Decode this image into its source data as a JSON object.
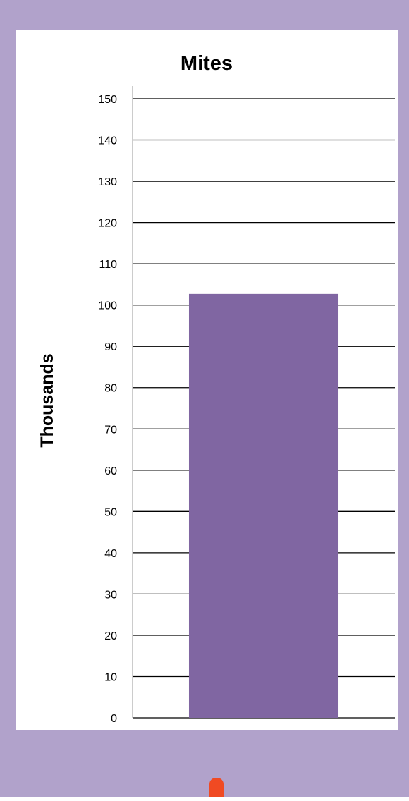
{
  "chart_data": {
    "type": "bar",
    "title": "Mites",
    "xlabel": "",
    "ylabel": "Thousands",
    "ylim": [
      0,
      150
    ],
    "y_ticks": [
      "0",
      "10",
      "20",
      "30",
      "40",
      "50",
      "60",
      "70",
      "80",
      "90",
      "100",
      "110",
      "120",
      "130",
      "140",
      "150"
    ],
    "categories": [
      ""
    ],
    "values": [
      102.7
    ],
    "grid": true,
    "legend": "none"
  },
  "colors": {
    "frame": "#b1a2cb",
    "bar": "#8066a2",
    "indicator": "#f04a23",
    "panel": "#ffffff"
  }
}
